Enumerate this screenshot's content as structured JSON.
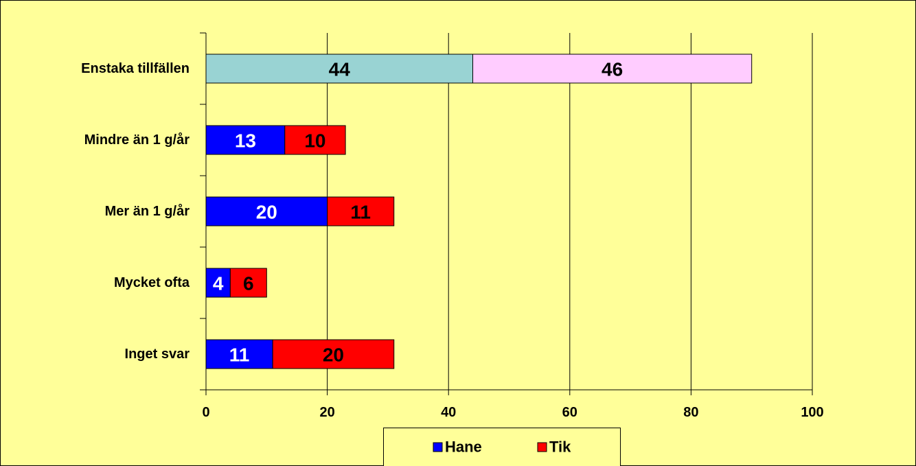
{
  "chart_data": {
    "type": "stacked-barh",
    "categories": [
      "Enstaka tillfällen",
      "Mindre än 1 g/år",
      "Mer än 1 g/år",
      "Mycket ofta",
      "Inget svar"
    ],
    "series": [
      {
        "name": "Hane",
        "color": "#0000ff",
        "values": [
          44,
          13,
          20,
          4,
          11
        ],
        "point_colors": [
          "#99d3d3",
          "#0000ff",
          "#0000ff",
          "#0000ff",
          "#0000ff"
        ],
        "label_colors": [
          "#000000",
          "#ffffff",
          "#ffffff",
          "#ffffff",
          "#ffffff"
        ]
      },
      {
        "name": "Tik",
        "color": "#ff0000",
        "values": [
          46,
          10,
          11,
          6,
          20
        ],
        "point_colors": [
          "#ffccff",
          "#ff0000",
          "#ff0000",
          "#ff0000",
          "#ff0000"
        ],
        "label_colors": [
          "#000000",
          "#000000",
          "#000000",
          "#000000",
          "#000000"
        ]
      }
    ],
    "xlim": [
      0,
      100
    ],
    "xticks": [
      0,
      20,
      40,
      60,
      80,
      100
    ],
    "grid": true,
    "legend": "bottom"
  }
}
